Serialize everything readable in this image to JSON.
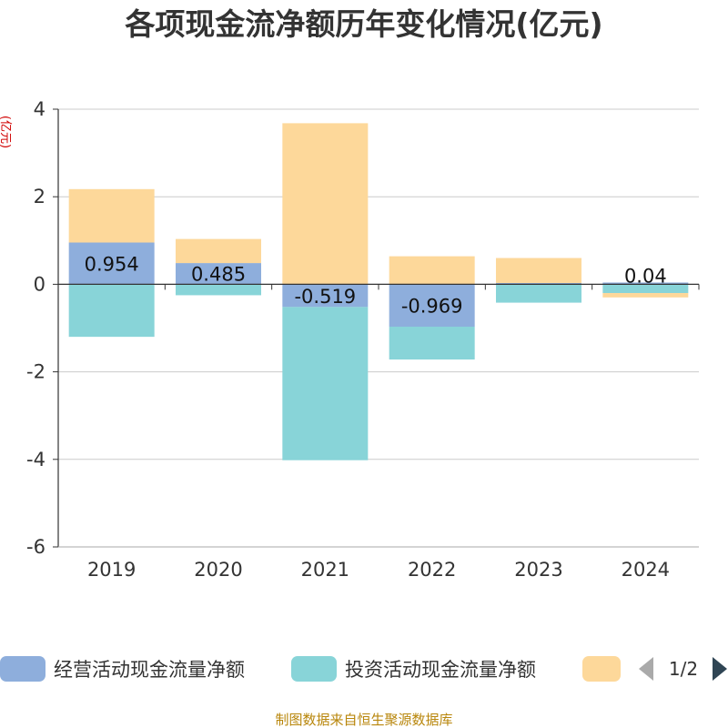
{
  "chart_data": {
    "type": "bar",
    "stacked": true,
    "title": "各项现金流净额历年变化情况(亿元)",
    "ylabel": "(亿元)",
    "categories": [
      "2019",
      "2020",
      "2021",
      "2022",
      "2023",
      "2024"
    ],
    "ylim": [
      -6,
      4
    ],
    "yticks": [
      4,
      2,
      0,
      -2,
      -4,
      -6
    ],
    "grid": true,
    "series": [
      {
        "name": "经营活动现金流量净额",
        "color": "#8eaedc",
        "values": [
          0.954,
          0.485,
          -0.519,
          -0.969,
          0.03,
          0.04
        ]
      },
      {
        "name": "投资活动现金流量净额",
        "color": "#88d4d8",
        "values": [
          -1.2,
          -0.25,
          -3.5,
          -0.75,
          -0.42,
          -0.2
        ]
      },
      {
        "name": "",
        "color": "#fdd89a",
        "values": [
          1.22,
          0.55,
          3.68,
          0.64,
          0.57,
          -0.1
        ]
      }
    ],
    "data_labels": [
      "0.954",
      "0.485",
      "-0.519",
      "-0.969",
      "",
      "0.04"
    ],
    "legend": {
      "position": "bottom",
      "page": "1/2"
    }
  },
  "footer": "制图数据来自恒生聚源数据库"
}
